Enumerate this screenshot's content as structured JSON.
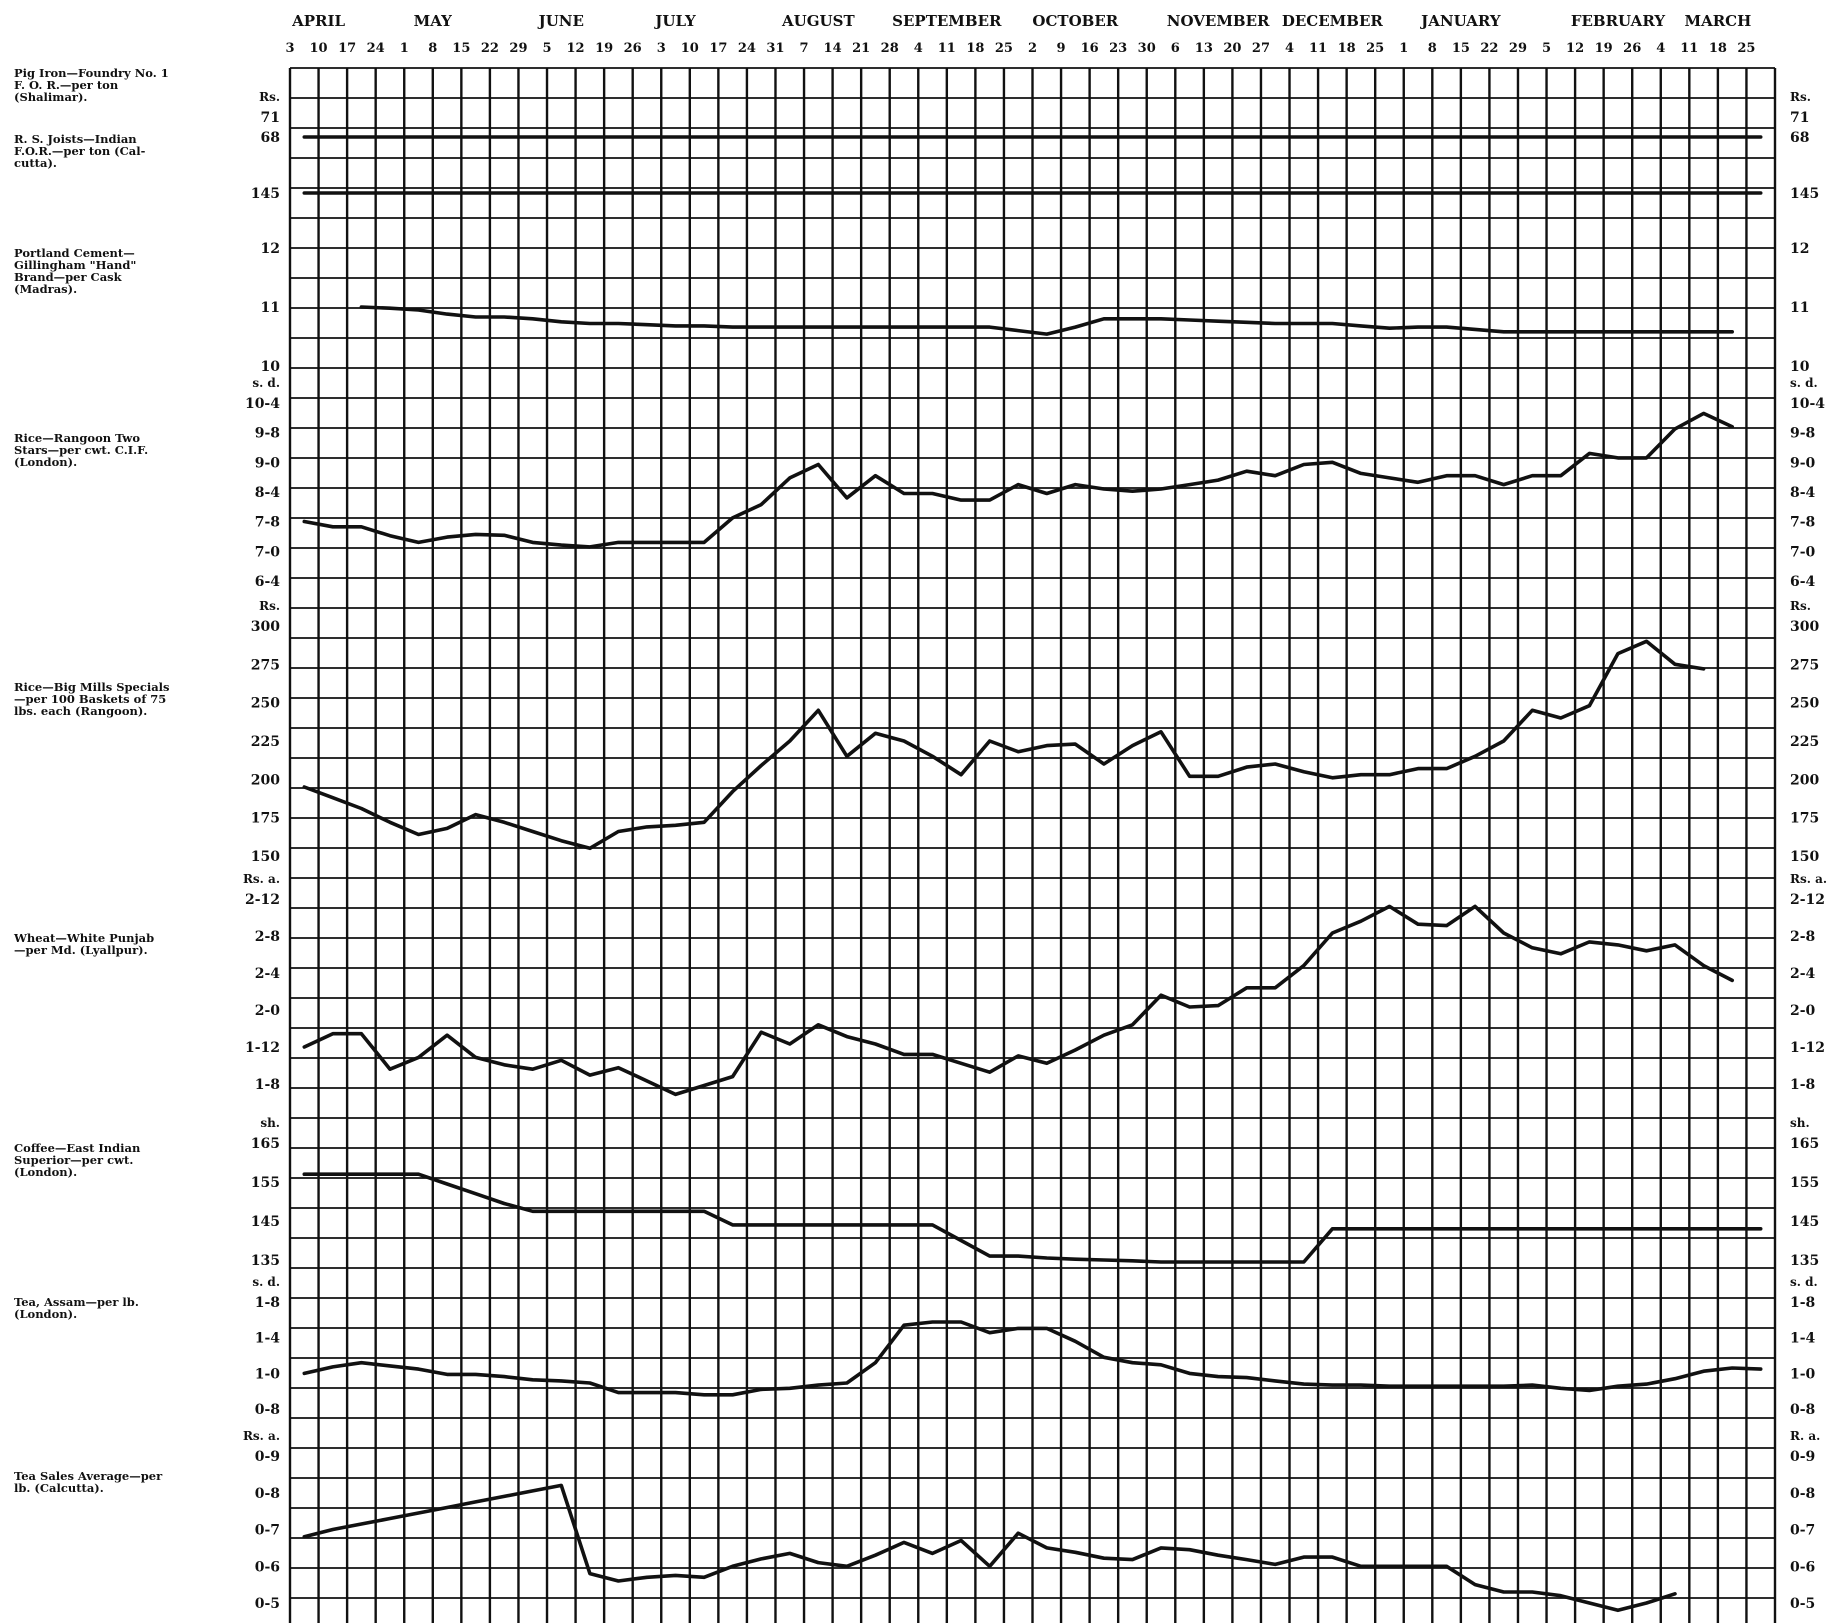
{
  "chart_data": {
    "type": "line",
    "months": [
      "APRIL",
      "MAY",
      "JUNE",
      "JULY",
      "AUGUST",
      "SEPTEMBER",
      "OCTOBER",
      "NOVEMBER",
      "DECEMBER",
      "JANUARY",
      "FEBRUARY",
      "MARCH"
    ],
    "week_labels": [
      "3",
      "10",
      "17",
      "24",
      "1",
      "8",
      "15",
      "22",
      "29",
      "5",
      "12",
      "19",
      "26",
      "3",
      "10",
      "17",
      "24",
      "31",
      "7",
      "14",
      "21",
      "28",
      "4",
      "11",
      "18",
      "25",
      "2",
      "9",
      "16",
      "23",
      "30",
      "6",
      "13",
      "20",
      "27",
      "4",
      "11",
      "18",
      "25",
      "1",
      "8",
      "15",
      "22",
      "29",
      "5",
      "12",
      "19",
      "26",
      "4",
      "11",
      "18",
      "25"
    ],
    "panels": [
      {
        "description": "Pig Iron—Foundry No. 1\nF. O. R.—per ton\n(Shalimar).",
        "unit_left": "Rs.",
        "unit_right": "Rs.",
        "ticks_left": [
          "71",
          "68"
        ],
        "ticks_right": [
          "71",
          "68"
        ],
        "series": [
          {
            "values": [
              68,
              68,
              68,
              68,
              68,
              68,
              68,
              68,
              68,
              68,
              68,
              68,
              68,
              68,
              68,
              68,
              68,
              68,
              68,
              68,
              68,
              68,
              68,
              68,
              68,
              68,
              68,
              68,
              68,
              68,
              68,
              68,
              68,
              68,
              68,
              68,
              68,
              68,
              68,
              68,
              68,
              68,
              68,
              68,
              68,
              68,
              68,
              68,
              68,
              68,
              68,
              68
            ]
          }
        ]
      },
      {
        "description": "R. S. Joists—Indian\nF.O.R.—per ton (Cal-\ncutta).",
        "unit_left": "",
        "unit_right": "",
        "ticks_left": [
          "145"
        ],
        "ticks_right": [
          "145"
        ],
        "series": [
          {
            "values": [
              145,
              145,
              145,
              145,
              145,
              145,
              145,
              145,
              145,
              145,
              145,
              145,
              145,
              145,
              145,
              145,
              145,
              145,
              145,
              145,
              145,
              145,
              145,
              145,
              145,
              145,
              145,
              145,
              145,
              145,
              145,
              145,
              145,
              145,
              145,
              145,
              145,
              145,
              145,
              145,
              145,
              145,
              145,
              145,
              145,
              145,
              145,
              145,
              145,
              145,
              145,
              145
            ]
          }
        ]
      },
      {
        "description": "Portland Cement—\nGillingham \"Hand\"\nBrand—per Cask\n(Madras).",
        "unit_left": "",
        "unit_right": "",
        "ticks_left": [
          "12",
          "11",
          "10"
        ],
        "ticks_right": [
          "12",
          "11",
          "10"
        ],
        "series": [
          {
            "values": [
              null,
              null,
              11.0,
              10.98,
              10.95,
              10.88,
              10.83,
              10.83,
              10.8,
              10.75,
              10.72,
              10.72,
              10.7,
              10.68,
              10.68,
              10.66,
              10.66,
              10.66,
              10.66,
              10.66,
              10.66,
              10.66,
              10.66,
              10.66,
              10.66,
              10.6,
              10.54,
              10.66,
              10.8,
              10.8,
              10.8,
              10.78,
              10.76,
              10.74,
              10.72,
              10.72,
              10.72,
              10.68,
              10.64,
              10.66,
              10.66,
              10.62,
              10.58,
              10.58,
              10.58,
              10.58,
              10.58,
              10.58,
              10.58,
              10.58,
              10.58,
              null
            ]
          }
        ]
      },
      {
        "description": "Rice—Rangoon Two\nStars—per cwt. C.I.F.\n(London).",
        "unit_left": "s. d.",
        "unit_right": "s. d.",
        "ticks_left": [
          "10-4",
          "9-8",
          "9-0",
          "8-4",
          "7-8",
          "7-0",
          "6-4"
        ],
        "ticks_right": [
          "10-4",
          "9-8",
          "9-0",
          "8-4",
          "7-8",
          "7-0",
          "6-4"
        ],
        "series": [
          {
            "values": [
              7.67,
              7.55,
              7.55,
              7.35,
              7.2,
              7.32,
              7.38,
              7.36,
              7.2,
              7.14,
              7.1,
              7.2,
              7.2,
              7.2,
              7.2,
              7.75,
              8.05,
              8.65,
              8.95,
              8.2,
              8.7,
              8.3,
              8.3,
              8.15,
              8.15,
              8.5,
              8.3,
              8.5,
              8.4,
              8.35,
              8.4,
              8.5,
              8.6,
              8.8,
              8.7,
              8.95,
              9.0,
              8.75,
              8.65,
              8.55,
              8.7,
              8.7,
              8.5,
              8.7,
              8.7,
              9.2,
              9.1,
              9.1,
              9.75,
              10.1,
              9.8,
              null
            ]
          }
        ]
      },
      {
        "description": "Rice—Big Mills Specials\n—per 100 Baskets of 75\nlbs. each (Rangoon).",
        "unit_left": "Rs.",
        "unit_right": "Rs.",
        "ticks_left": [
          "300",
          "275",
          "250",
          "225",
          "200",
          "175",
          "150"
        ],
        "ticks_right": [
          "300",
          "275",
          "250",
          "225",
          "200",
          "175",
          "150"
        ],
        "series": [
          {
            "values": [
              195,
              188,
              181,
              172,
              164,
              168,
              177,
              172,
              166,
              160,
              155,
              166,
              169,
              170,
              172,
              192,
              209,
              225,
              245,
              215,
              230,
              225,
              215,
              203,
              225,
              218,
              222,
              223,
              210,
              222,
              231,
              202,
              202,
              208,
              210,
              205,
              201,
              203,
              203,
              207,
              207,
              215,
              225,
              245,
              240,
              248,
              282,
              290,
              275,
              272,
              null,
              null
            ]
          }
        ]
      },
      {
        "description": "Wheat—White Punjab\n—per Md. (Lyallpur).",
        "unit_left": "Rs. a.",
        "unit_right": "Rs. a.",
        "ticks_left": [
          "2-12",
          "2-8",
          "2-4",
          "2-0",
          "1-12",
          "1-8"
        ],
        "ticks_right": [
          "2-12",
          "2-8",
          "2-4",
          "2-0",
          "1-12",
          "1-8"
        ],
        "series": [
          {
            "values": [
              1.75,
              1.84,
              1.84,
              1.6,
              1.68,
              1.83,
              1.68,
              1.63,
              1.6,
              1.66,
              1.56,
              1.61,
              1.52,
              1.43,
              1.49,
              1.55,
              1.85,
              1.77,
              1.9,
              1.82,
              1.77,
              1.7,
              1.7,
              1.64,
              1.58,
              1.69,
              1.64,
              1.73,
              1.83,
              1.9,
              2.1,
              2.02,
              2.03,
              2.15,
              2.15,
              2.3,
              2.52,
              2.6,
              2.7,
              2.58,
              2.57,
              2.7,
              2.52,
              2.42,
              2.38,
              2.46,
              2.44,
              2.4,
              2.44,
              2.3,
              2.2,
              null
            ]
          }
        ]
      },
      {
        "description": "Coffee—East Indian\nSuperior—per cwt.\n(London).",
        "unit_left": "sh.",
        "unit_right": "sh.",
        "ticks_left": [
          "165",
          "155",
          "145",
          "135"
        ],
        "ticks_right": [
          "165",
          "155",
          "145",
          "135"
        ],
        "series": [
          {
            "values": [
              157,
              157,
              157,
              157,
              157,
              154.5,
              152,
              149.5,
              147.5,
              147.5,
              147.5,
              147.5,
              147.5,
              147.5,
              147.5,
              144,
              144,
              144,
              144,
              144,
              144,
              144,
              144,
              140,
              136,
              136,
              135.5,
              135.2,
              135,
              134.8,
              134.5,
              134.5,
              134.5,
              134.5,
              134.5,
              134.5,
              143,
              143,
              143,
              143,
              143,
              143,
              143,
              143,
              143,
              143,
              143,
              143,
              143,
              143,
              143,
              143
            ]
          }
        ]
      },
      {
        "description": "Tea, Assam—per lb.\n(London).",
        "unit_left": "s. d.",
        "unit_right": "s. d.",
        "ticks_left": [
          "1-8",
          "1-4",
          "1-0",
          "0-8"
        ],
        "ticks_right": [
          "1-8",
          "1-4",
          "1-0",
          "0-8"
        ],
        "series": [
          {
            "values": [
              1.0,
              1.06,
              1.1,
              1.07,
              1.04,
              0.99,
              0.99,
              0.97,
              0.94,
              0.93,
              0.91,
              0.82,
              0.82,
              0.82,
              0.8,
              0.8,
              0.85,
              0.86,
              0.89,
              0.91,
              1.1,
              1.45,
              1.48,
              1.48,
              1.38,
              1.42,
              1.42,
              1.3,
              1.15,
              1.1,
              1.08,
              1.0,
              0.97,
              0.96,
              0.93,
              0.9,
              0.89,
              0.89,
              0.88,
              0.88,
              0.88,
              0.88,
              0.88,
              0.89,
              0.86,
              0.84,
              0.88,
              0.9,
              0.95,
              1.02,
              1.05,
              1.04
            ]
          }
        ]
      },
      {
        "description": "Tea Sales Average—per\nlb. (Calcutta).",
        "unit_left": "Rs. a.",
        "unit_right": "R. a.",
        "ticks_left": [
          "0-9",
          "0-8",
          "0-7",
          "0-6",
          "0-5"
        ],
        "ticks_right": [
          "0-9",
          "0-8",
          "0-7",
          "0-6",
          "0-5"
        ],
        "series": [
          {
            "values": [
              6.8,
              7.0,
              7.15,
              7.3,
              7.45,
              7.6,
              7.75,
              7.9,
              8.05,
              8.2,
              5.8,
              5.6,
              5.7,
              5.75,
              5.7,
              6.0,
              6.2,
              6.35,
              6.1,
              6.0,
              6.3,
              6.65,
              6.35,
              6.7,
              6.0,
              6.9,
              6.5,
              6.38,
              6.22,
              6.18,
              6.5,
              6.45,
              6.3,
              6.18,
              6.05,
              6.25,
              6.25,
              6.0,
              6.0,
              6.0,
              6.0,
              5.5,
              5.3,
              5.3,
              5.2,
              5.0,
              4.8,
              5.0,
              5.25,
              null,
              null,
              null
            ]
          }
        ]
      }
    ]
  }
}
